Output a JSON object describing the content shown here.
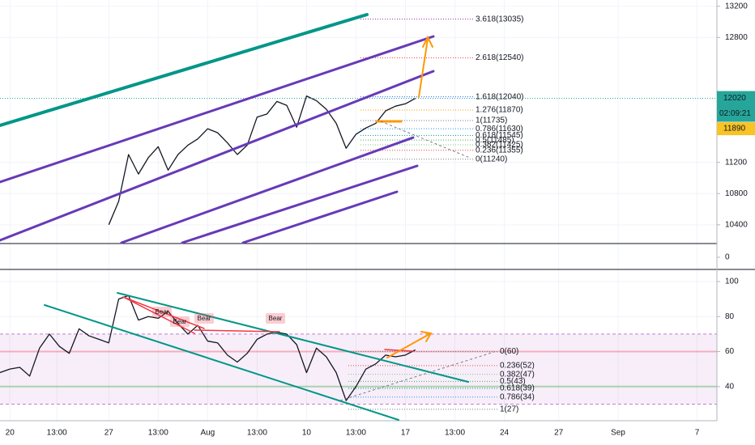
{
  "chart_data": [
    {
      "type": "line",
      "xlim": [
        0,
        145
      ],
      "xticks": [
        {
          "value": 2,
          "label": "20"
        },
        {
          "value": 11.5,
          "label": "13:00"
        },
        {
          "value": 22,
          "label": "27"
        },
        {
          "value": 32,
          "label": "13:00"
        },
        {
          "value": 42,
          "label": "Aug"
        },
        {
          "value": 52,
          "label": "13:00"
        },
        {
          "value": 62,
          "label": "10"
        },
        {
          "value": 72,
          "label": "13:00"
        },
        {
          "value": 82,
          "label": "17"
        },
        {
          "value": 92,
          "label": "13:00"
        },
        {
          "value": 102,
          "label": "24"
        },
        {
          "value": 113,
          "label": "27"
        },
        {
          "value": 125,
          "label": "Sep"
        },
        {
          "value": 141,
          "label": "7"
        }
      ],
      "ylim": [
        10170,
        13280
      ],
      "yticks": [
        10400,
        10800,
        11200,
        12800,
        13200
      ],
      "x": [
        22,
        24,
        26,
        28,
        30,
        32,
        34,
        36,
        38,
        40,
        42,
        44,
        46,
        48,
        50,
        52,
        54,
        56,
        58,
        60,
        62,
        64,
        66,
        68,
        70,
        72,
        74,
        76,
        78,
        80,
        82,
        84
      ],
      "values": [
        10400,
        10700,
        11300,
        11050,
        11260,
        11400,
        11100,
        11300,
        11420,
        11500,
        11630,
        11580,
        11450,
        11300,
        11420,
        11780,
        11820,
        11980,
        11930,
        11650,
        12050,
        11990,
        11880,
        11700,
        11380,
        11560,
        11640,
        11700,
        11860,
        11920,
        11950,
        12020
      ],
      "color": "#131722",
      "last_price": 12020,
      "countdown": "02:09:21",
      "marker_price": 11890,
      "fib_levels": [
        {
          "label": "3.618(13035)",
          "value": 13035,
          "color": "#9c27b0"
        },
        {
          "label": "2.618(12540)",
          "value": 12540,
          "color": "#f23645"
        },
        {
          "label": "1.618(12040)",
          "value": 12040,
          "color": "#2962ff"
        },
        {
          "label": "1.276(11870)",
          "value": 11870,
          "color": "#ff9800"
        },
        {
          "label": "1(11735)",
          "value": 11735,
          "color": "#787b86"
        },
        {
          "label": "0.786(11630)",
          "value": 11630,
          "color": "#2196f3"
        },
        {
          "label": "0.618(11545)",
          "value": 11545,
          "color": "#009688"
        },
        {
          "label": "0.5(11485)",
          "value": 11485,
          "color": "#4caf50"
        },
        {
          "label": "0.382(11425)",
          "value": 11425,
          "color": "#81c784"
        },
        {
          "label": "0.236(11355)",
          "value": 11355,
          "color": "#f44336"
        },
        {
          "label": "0(11240)",
          "value": 11240,
          "color": "#787b86"
        }
      ],
      "macd_yticks": [
        0
      ]
    },
    {
      "type": "line",
      "xlim": [
        0,
        145
      ],
      "ylim": [
        20.5,
        106
      ],
      "yticks": [
        40,
        60,
        80,
        100
      ],
      "band": [
        30,
        70
      ],
      "x": [
        0,
        2,
        4,
        6,
        8,
        10,
        12,
        14,
        16,
        18,
        20,
        22,
        24,
        26,
        28,
        30,
        32,
        34,
        36,
        38,
        40,
        42,
        44,
        46,
        48,
        50,
        52,
        54,
        56,
        58,
        60,
        62,
        64,
        66,
        68,
        70,
        72,
        74,
        76,
        78,
        80,
        82,
        84
      ],
      "values": [
        48,
        50,
        51,
        46,
        62,
        70,
        63,
        59,
        73,
        69,
        67,
        65,
        90,
        92,
        78,
        80,
        79,
        83,
        76,
        70,
        75,
        66,
        65,
        58,
        54,
        59,
        67,
        70,
        71,
        70,
        64,
        48,
        62,
        57,
        48,
        32,
        40,
        50,
        53,
        58,
        57,
        58,
        61
      ],
      "color": "#131722",
      "fib_levels": [
        {
          "label": "0(60)",
          "value": 60,
          "color": "#787b86"
        },
        {
          "label": "0.236(52)",
          "value": 52,
          "color": "#f44336"
        },
        {
          "label": "0.382(47)",
          "value": 47,
          "color": "#81c784"
        },
        {
          "label": "0.5(43)",
          "value": 43,
          "color": "#4caf50"
        },
        {
          "label": "0.618(39)",
          "value": 39,
          "color": "#009688"
        },
        {
          "label": "0.786(34)",
          "value": 34,
          "color": "#2196f3"
        },
        {
          "label": "1(27)",
          "value": 27,
          "color": "#787b86"
        }
      ],
      "annotations": [
        "Bear",
        "Bear",
        "Bear",
        "Bear"
      ]
    }
  ]
}
